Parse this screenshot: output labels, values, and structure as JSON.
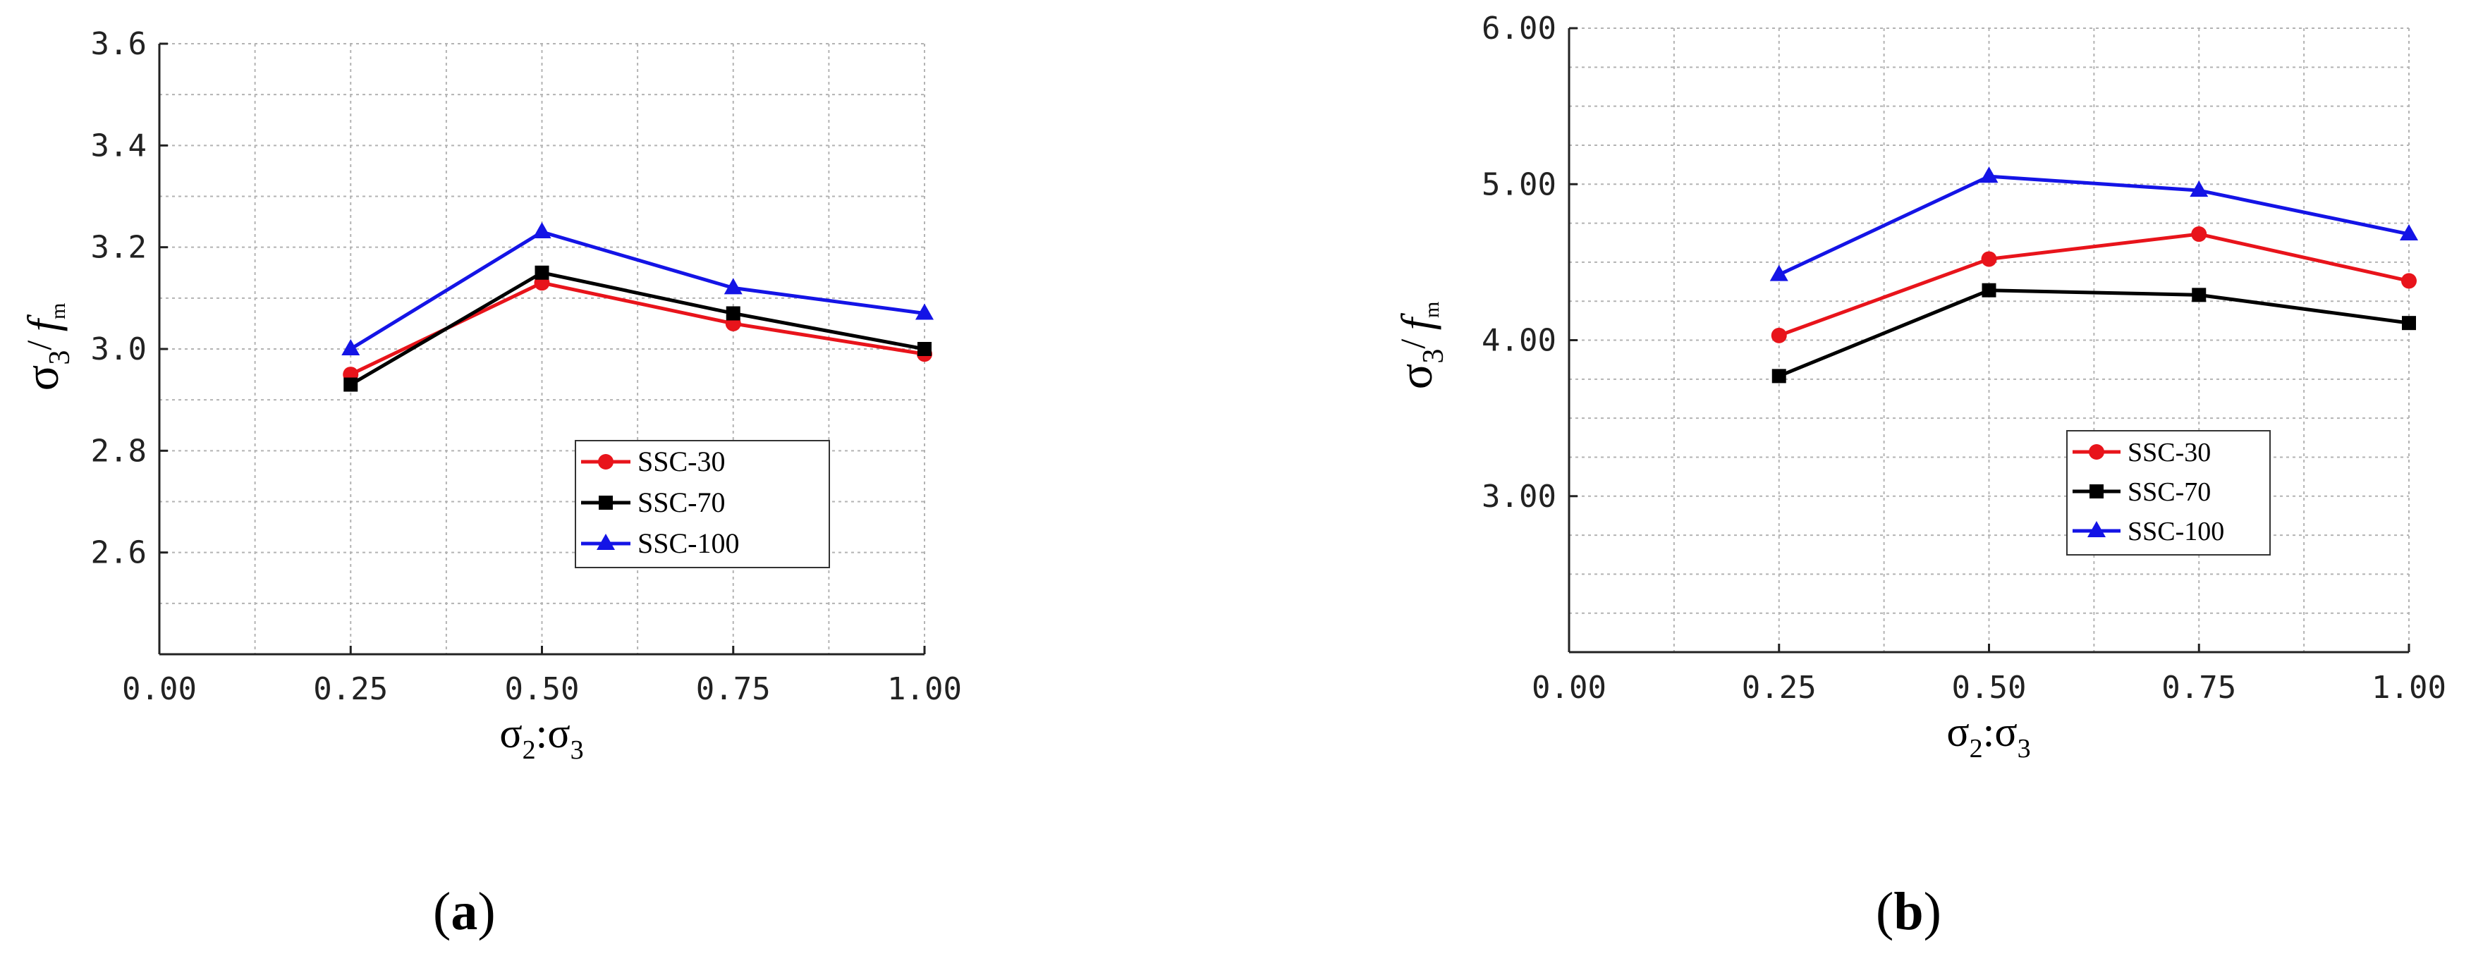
{
  "chart_data": [
    {
      "type": "line",
      "panel": "a",
      "x": [
        0.25,
        0.5,
        0.75,
        1.0
      ],
      "xlim": [
        0,
        1
      ],
      "ylim": [
        2.4,
        3.6
      ],
      "xticks": [
        "0.00",
        "0.25",
        "0.50",
        "0.75",
        "1.00"
      ],
      "yticks": [
        "2.6",
        "2.8",
        "3.0",
        "3.2",
        "3.4",
        "3.6"
      ],
      "xlabel": "σ2:σ3",
      "ylabel": "σ3/ fm",
      "grid": true,
      "legend_position": "lower-right",
      "series": [
        {
          "name": "SSC-30",
          "color": "#e8141b",
          "marker": "circle",
          "values": [
            2.95,
            3.13,
            3.05,
            2.99
          ]
        },
        {
          "name": "SSC-70",
          "color": "#000000",
          "marker": "square",
          "values": [
            2.93,
            3.15,
            3.07,
            3.0
          ]
        },
        {
          "name": "SSC-100",
          "color": "#1414e6",
          "marker": "triangle",
          "values": [
            3.0,
            3.23,
            3.12,
            3.07
          ]
        }
      ]
    },
    {
      "type": "line",
      "panel": "b",
      "x": [
        0.25,
        0.5,
        0.75,
        1.0
      ],
      "xlim": [
        0,
        1
      ],
      "ylim": [
        2.0,
        6.0
      ],
      "xticks": [
        "0.00",
        "0.25",
        "0.50",
        "0.75",
        "1.00"
      ],
      "yticks": [
        "3.00",
        "4.00",
        "5.00",
        "6.00"
      ],
      "xlabel": "σ2:σ3",
      "ylabel": "σ3/ fm",
      "grid": true,
      "legend_position": "lower-right",
      "series": [
        {
          "name": "SSC-30",
          "color": "#e8141b",
          "marker": "circle",
          "values": [
            4.03,
            4.52,
            4.68,
            4.38
          ]
        },
        {
          "name": "SSC-70",
          "color": "#000000",
          "marker": "square",
          "values": [
            3.77,
            4.32,
            4.29,
            4.11
          ]
        },
        {
          "name": "SSC-100",
          "color": "#1414e6",
          "marker": "triangle",
          "values": [
            4.42,
            5.05,
            4.96,
            4.68
          ]
        }
      ]
    }
  ],
  "captions": {
    "a": "a",
    "b": "b"
  }
}
